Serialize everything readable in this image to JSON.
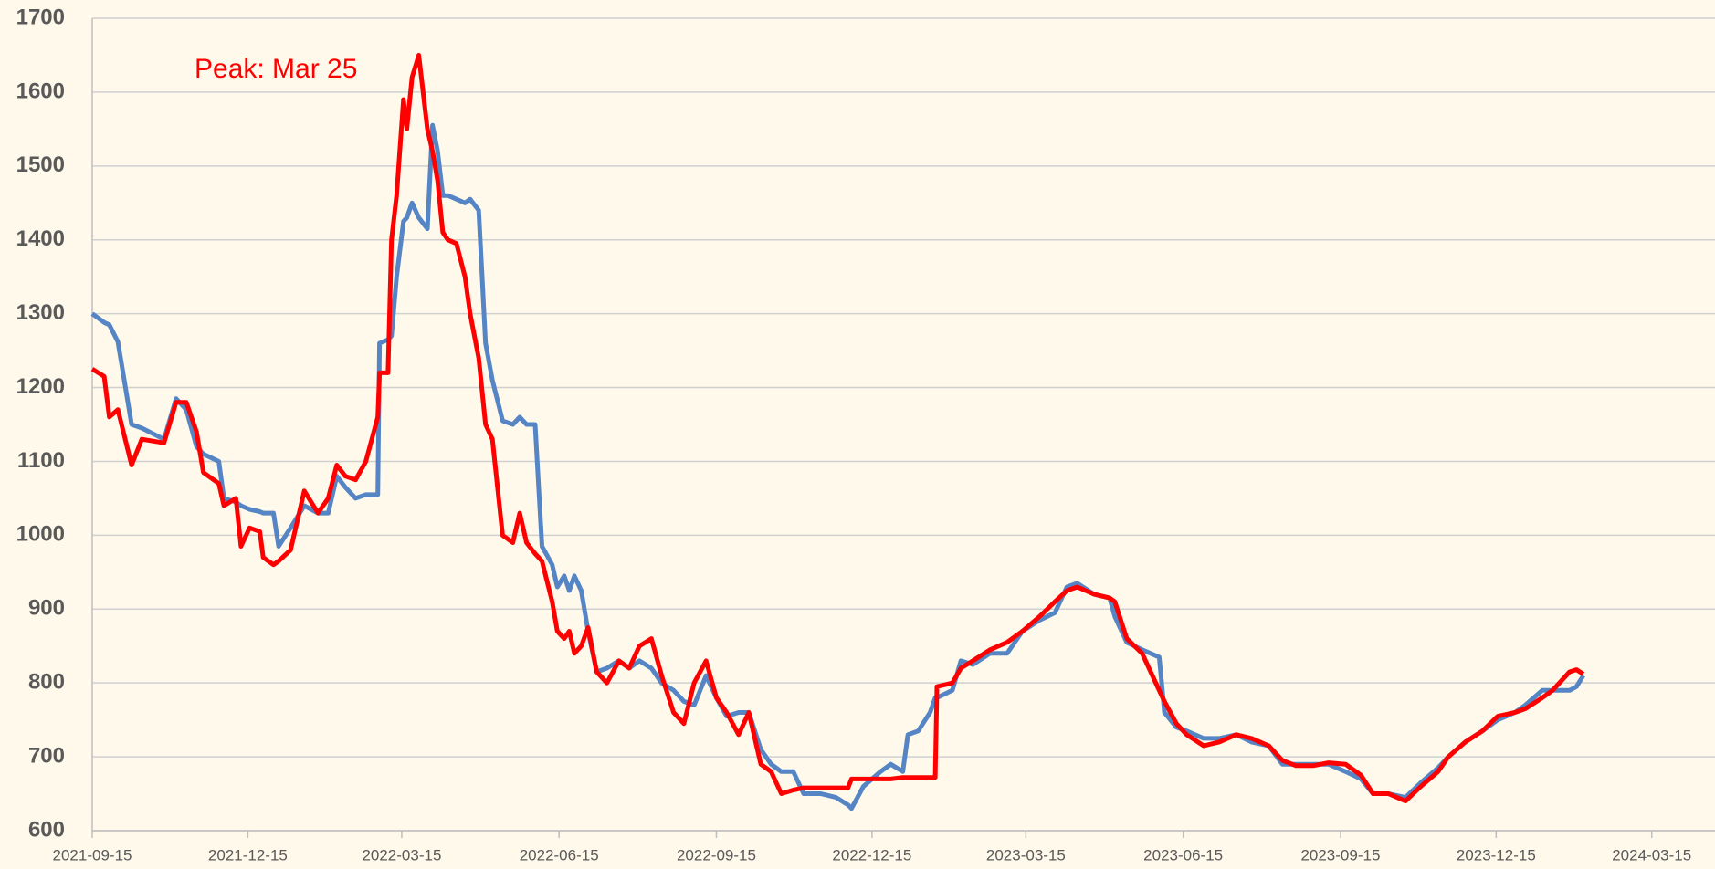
{
  "chart_data": {
    "type": "line",
    "annotation": "Peak: Mar 25",
    "x": [
      "2021-09-15",
      "2021-09-22",
      "2021-09-25",
      "2021-09-30",
      "2021-10-08",
      "2021-10-14",
      "2021-10-27",
      "2021-11-03",
      "2021-11-09",
      "2021-11-15",
      "2021-11-19",
      "2021-11-28",
      "2021-12-01",
      "2021-12-08",
      "2021-12-11",
      "2021-12-16",
      "2021-12-22",
      "2021-12-24",
      "2021-12-30",
      "2022-01-02",
      "2022-01-09",
      "2022-01-17",
      "2022-01-25",
      "2022-01-31",
      "2022-02-05",
      "2022-02-10",
      "2022-02-16",
      "2022-02-22",
      "2022-03-01",
      "2022-03-02",
      "2022-03-07",
      "2022-03-09",
      "2022-03-12",
      "2022-03-16",
      "2022-03-18",
      "2022-03-21",
      "2022-03-25",
      "2022-03-30",
      "2022-04-02",
      "2022-04-05",
      "2022-04-08",
      "2022-04-11",
      "2022-04-16",
      "2022-04-21",
      "2022-04-24",
      "2022-04-29",
      "2022-05-03",
      "2022-05-07",
      "2022-05-13",
      "2022-05-19",
      "2022-05-23",
      "2022-05-27",
      "2022-06-01",
      "2022-06-05",
      "2022-06-11",
      "2022-06-14",
      "2022-06-18",
      "2022-06-21",
      "2022-06-24",
      "2022-06-28",
      "2022-07-02",
      "2022-07-07",
      "2022-07-13",
      "2022-07-20",
      "2022-07-26",
      "2022-08-01",
      "2022-08-08",
      "2022-08-14",
      "2022-08-21",
      "2022-08-27",
      "2022-09-02",
      "2022-09-09",
      "2022-09-15",
      "2022-09-21",
      "2022-09-28",
      "2022-10-04",
      "2022-10-11",
      "2022-10-17",
      "2022-10-23",
      "2022-10-30",
      "2022-11-05",
      "2022-11-15",
      "2022-11-24",
      "2022-12-01",
      "2022-12-03",
      "2022-12-10",
      "2022-12-20",
      "2022-12-26",
      "2023-01-02",
      "2023-01-05",
      "2023-01-11",
      "2023-01-18",
      "2023-01-21",
      "2023-01-22",
      "2023-01-31",
      "2023-02-05",
      "2023-02-12",
      "2023-02-22",
      "2023-03-04",
      "2023-03-13",
      "2023-03-23",
      "2023-04-01",
      "2023-04-08",
      "2023-04-14",
      "2023-04-24",
      "2023-05-03",
      "2023-05-06",
      "2023-05-13",
      "2023-05-22",
      "2023-06-01",
      "2023-06-04",
      "2023-06-11",
      "2023-06-17",
      "2023-06-27",
      "2023-07-06",
      "2023-07-16",
      "2023-07-25",
      "2023-08-04",
      "2023-08-12",
      "2023-08-20",
      "2023-08-30",
      "2023-09-08",
      "2023-09-18",
      "2023-09-27",
      "2023-10-04",
      "2023-10-13",
      "2023-10-23",
      "2023-11-01",
      "2023-11-11",
      "2023-11-17",
      "2023-11-27",
      "2023-12-07",
      "2023-12-16",
      "2023-12-26",
      "2024-01-01",
      "2024-01-11",
      "2024-01-17",
      "2024-01-27",
      "2024-01-31",
      "2024-02-04"
    ],
    "series": [
      {
        "color": "#5585c5",
        "values": [
          1300,
          1288,
          1285,
          1262,
          1150,
          1145,
          1130,
          1185,
          1170,
          1120,
          1110,
          1100,
          1050,
          1045,
          1040,
          1035,
          1032,
          1030,
          1030,
          985,
          1010,
          1040,
          1030,
          1030,
          1080,
          1065,
          1050,
          1055,
          1055,
          1260,
          1265,
          1270,
          1350,
          1425,
          1430,
          1450,
          1430,
          1415,
          1555,
          1520,
          1460,
          1460,
          1455,
          1450,
          1455,
          1440,
          1260,
          1210,
          1155,
          1150,
          1160,
          1150,
          1150,
          985,
          960,
          930,
          945,
          925,
          945,
          925,
          870,
          815,
          820,
          830,
          820,
          830,
          820,
          800,
          790,
          775,
          770,
          810,
          780,
          755,
          760,
          760,
          710,
          690,
          680,
          680,
          650,
          650,
          645,
          635,
          630,
          660,
          680,
          690,
          680,
          730,
          735,
          760,
          780,
          780,
          790,
          830,
          825,
          840,
          840,
          870,
          885,
          895,
          930,
          935,
          920,
          915,
          890,
          855,
          845,
          835,
          760,
          740,
          735,
          725,
          725,
          730,
          720,
          715,
          690,
          690,
          690,
          690,
          680,
          670,
          650,
          650,
          645,
          665,
          685,
          700,
          720,
          735,
          750,
          760,
          770,
          790,
          790,
          790,
          795,
          810
        ]
      },
      {
        "color": "#ff0000",
        "values": [
          1225,
          1215,
          1160,
          1170,
          1095,
          1130,
          1125,
          1180,
          1180,
          1140,
          1085,
          1070,
          1040,
          1050,
          985,
          1010,
          1005,
          970,
          960,
          965,
          980,
          1060,
          1030,
          1050,
          1095,
          1080,
          1075,
          1100,
          1160,
          1220,
          1220,
          1400,
          1460,
          1590,
          1550,
          1620,
          1650,
          1550,
          1520,
          1480,
          1410,
          1400,
          1395,
          1350,
          1300,
          1240,
          1150,
          1130,
          1000,
          990,
          1030,
          990,
          975,
          965,
          910,
          870,
          860,
          870,
          840,
          850,
          875,
          815,
          800,
          830,
          820,
          850,
          860,
          810,
          760,
          745,
          800,
          830,
          780,
          760,
          730,
          760,
          690,
          680,
          650,
          655,
          658,
          658,
          658,
          658,
          670,
          670,
          670,
          670,
          672,
          672,
          672,
          672,
          672,
          795,
          800,
          820,
          830,
          845,
          855,
          870,
          890,
          910,
          925,
          930,
          920,
          915,
          910,
          860,
          840,
          790,
          775,
          745,
          730,
          715,
          720,
          730,
          725,
          715,
          695,
          688,
          688,
          692,
          690,
          675,
          650,
          650,
          640,
          660,
          680,
          700,
          720,
          735,
          755,
          760,
          765,
          780,
          790,
          815,
          818,
          812
        ]
      }
    ],
    "xlim": [
      "2021-09-15",
      "2024-04-21"
    ],
    "xticks": [
      "2021-09-15",
      "2021-12-15",
      "2022-03-15",
      "2022-06-15",
      "2022-09-15",
      "2022-12-15",
      "2023-03-15",
      "2023-06-15",
      "2023-09-15",
      "2023-12-15",
      "2024-03-15"
    ],
    "ylim": [
      600,
      1700
    ],
    "yticks": [
      600,
      700,
      800,
      900,
      1000,
      1100,
      1200,
      1300,
      1400,
      1500,
      1600,
      1700
    ],
    "grid": true
  }
}
